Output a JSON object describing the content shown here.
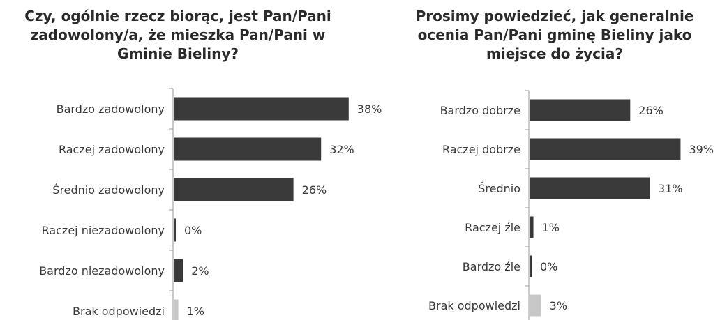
{
  "chart_data": [
    {
      "type": "bar",
      "orientation": "horizontal",
      "title": "Czy, ogólnie rzecz biorąc, jest Pan/Pani zadowolony/a, że mieszka Pan/Pani w Gminie Bieliny?",
      "categories": [
        "Bardzo zadowolony",
        "Raczej zadowolony",
        "Średnio zadowolony",
        "Raczej niezadowolony",
        "Bardzo niezadowolony",
        "Brak odpowiedzi"
      ],
      "values": [
        38,
        32,
        26,
        0,
        2,
        1
      ],
      "value_labels": [
        "38%",
        "32%",
        "26%",
        "0%",
        "2%",
        "1%"
      ],
      "bar_colors": [
        "#3a3a3a",
        "#3a3a3a",
        "#3a3a3a",
        "#3a3a3a",
        "#3a3a3a",
        "#c8c8c8"
      ],
      "xlim": [
        0,
        45
      ],
      "grid": false,
      "legend": "none"
    },
    {
      "type": "bar",
      "orientation": "horizontal",
      "title": "Prosimy powiedzieć, jak generalnie ocenia Pan/Pani gminę Bieliny jako miejsce do życia?",
      "categories": [
        "Bardzo dobrze",
        "Raczej dobrze",
        "Średnio",
        "Raczej źle",
        "Bardzo źle",
        "Brak odpowiedzi"
      ],
      "values": [
        26,
        39,
        31,
        1,
        0,
        3
      ],
      "value_labels": [
        "26%",
        "39%",
        "31%",
        "1%",
        "0%",
        "3%"
      ],
      "bar_colors": [
        "#3a3a3a",
        "#3a3a3a",
        "#3a3a3a",
        "#3a3a3a",
        "#3a3a3a",
        "#c8c8c8"
      ],
      "xlim": [
        0,
        42
      ],
      "grid": false,
      "legend": "none"
    }
  ]
}
